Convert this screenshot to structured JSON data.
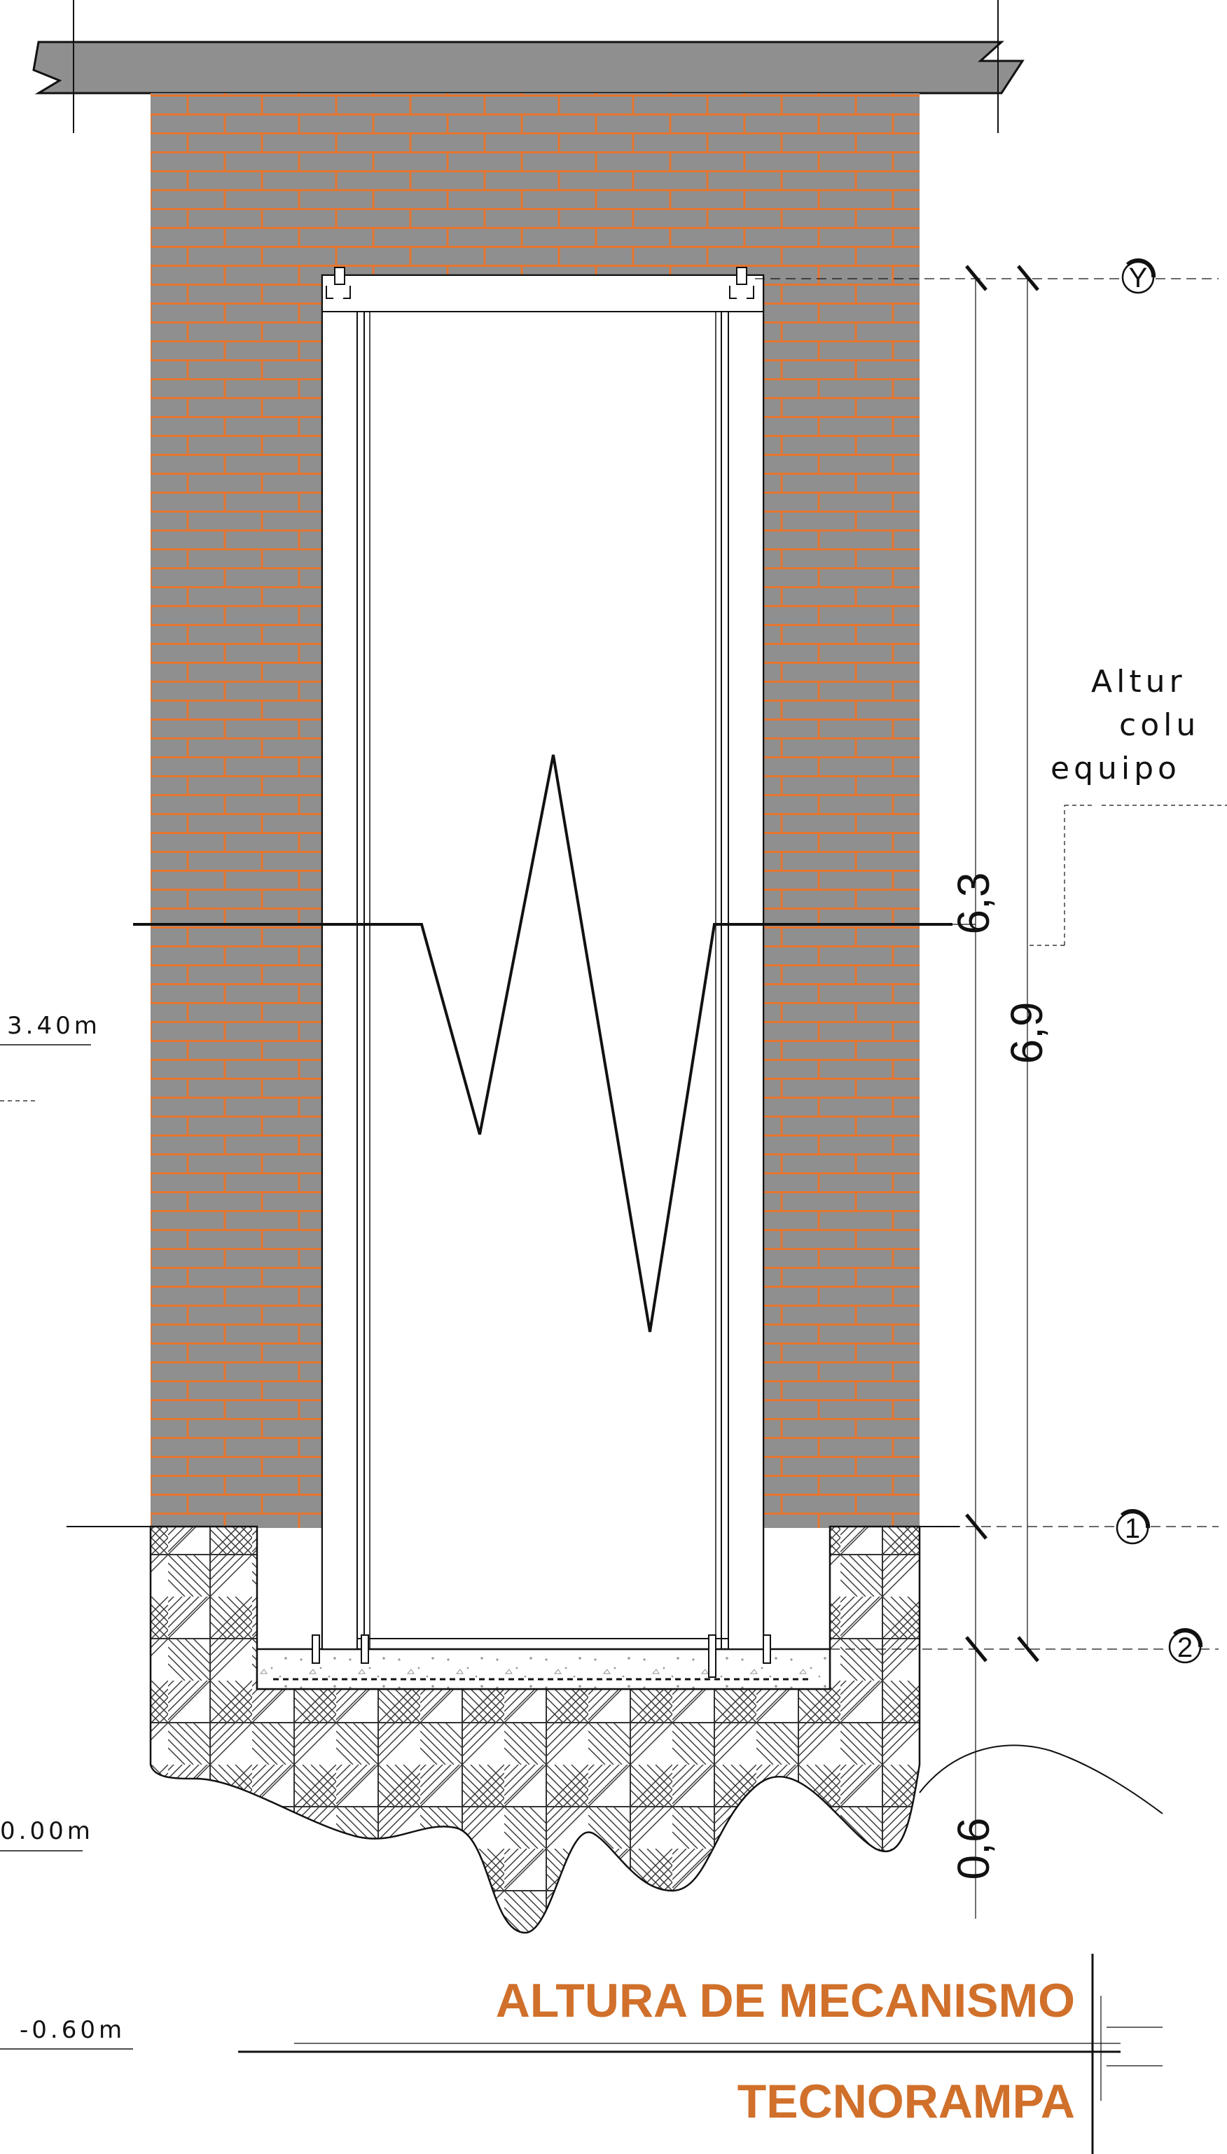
{
  "colors": {
    "wall": "#8f8f8f",
    "mortar": "#e5752f",
    "title": "#d0702b",
    "line": "#111111"
  },
  "dimensions": {
    "total": "6,9",
    "mechanism": "6,3",
    "pit": "0,6"
  },
  "levels": {
    "upper": "3.40m",
    "ground": "0.00m",
    "pit": "-0.60m"
  },
  "axes": {
    "top": "Y",
    "floor": "1",
    "pit": "2"
  },
  "note": {
    "line1": "Altur",
    "line2": "colu",
    "line3": "equipo"
  },
  "title": {
    "main": "ALTURA DE MECANISMO",
    "sub": "TECNORAMPA"
  }
}
